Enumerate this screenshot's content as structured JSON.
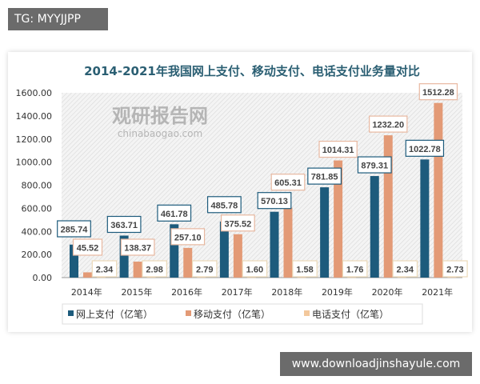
{
  "header_tag": "TG: MYYJJPP",
  "footer_site": "www.downloadjinshayule.com",
  "watermark": {
    "name": "观研报告网",
    "url": "chinabaogao.com"
  },
  "colors": {
    "online": "#1d5b7c",
    "mobile": "#e39a76",
    "phone": "#f3c89c"
  },
  "chart_data": {
    "type": "bar",
    "title": "2014-2021年我国网上支付、移动支付、电话支付业务量对比",
    "categories": [
      "2014年",
      "2015年",
      "2016年",
      "2017年",
      "2018年",
      "2019年",
      "2020年",
      "2021年"
    ],
    "series": [
      {
        "name": "网上支付（亿笔）",
        "values": [
          285.74,
          363.71,
          461.78,
          485.78,
          570.13,
          781.85,
          879.31,
          1022.78
        ],
        "labels": [
          "285.74",
          "363.71",
          "461.78",
          "485.78",
          "570.13",
          "781.85",
          "879.31",
          "1022.78"
        ]
      },
      {
        "name": "移动支付（亿笔）",
        "values": [
          45.52,
          138.37,
          257.1,
          375.52,
          605.31,
          1014.31,
          1232.2,
          1512.28
        ],
        "labels": [
          "45.52",
          "138.37",
          "257.10",
          "375.52",
          "605.31",
          "1014.31",
          "1232.20",
          "1512.28"
        ]
      },
      {
        "name": "电话支付（亿笔）",
        "values": [
          2.34,
          2.98,
          2.79,
          1.6,
          1.58,
          1.76,
          2.34,
          2.73
        ],
        "labels": [
          "2.34",
          "2.98",
          "2.79",
          "1.60",
          "1.58",
          "1.76",
          "2.34",
          "2.73"
        ]
      }
    ],
    "yticks": [
      "0.00",
      "200.00",
      "400.00",
      "600.00",
      "800.00",
      "1000.00",
      "1200.00",
      "1400.00",
      "1600.00"
    ],
    "ylim": [
      0,
      1600
    ],
    "xlabel": "",
    "ylabel": "",
    "legend": "bottom"
  }
}
